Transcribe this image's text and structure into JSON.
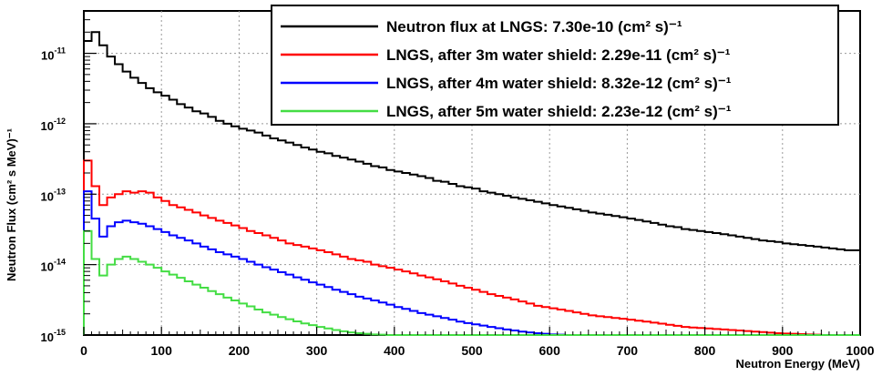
{
  "chart_data": {
    "type": "line",
    "title": "",
    "xlabel": "Neutron Energy (MeV)",
    "ylabel": "Neutron Flux (cm² s MeV)⁻¹",
    "xlim": [
      0,
      1000
    ],
    "ylim": [
      1e-15,
      4e-11
    ],
    "yscale": "log",
    "grid": true,
    "legend_position": "top-right",
    "x_ticks": [
      "0",
      "100",
      "200",
      "300",
      "400",
      "500",
      "600",
      "700",
      "800",
      "900",
      "1000"
    ],
    "y_ticks": [
      {
        "base": "10",
        "exp": "-11",
        "value": 1e-11
      },
      {
        "base": "10",
        "exp": "-12",
        "value": 1e-12
      },
      {
        "base": "10",
        "exp": "-13",
        "value": 1e-13
      },
      {
        "base": "10",
        "exp": "-14",
        "value": 1e-14
      },
      {
        "base": "10",
        "exp": "-15",
        "value": 1e-15
      }
    ],
    "bin_width": 10,
    "series": [
      {
        "name": "Neutron flux at LNGS: 7.30e-10 (cm² s)⁻¹",
        "color": "#000000",
        "values": [
          1.5e-11,
          2e-11,
          1.3e-11,
          9e-12,
          7e-12,
          5.5e-12,
          4.5e-12,
          3.8e-12,
          3.2e-12,
          2.8e-12,
          2.5e-12,
          2.2e-12,
          1.9e-12,
          1.7e-12,
          1.5e-12,
          1.4e-12,
          1.25e-12,
          1.1e-12,
          1e-12,
          9.2e-13,
          8.5e-13,
          8e-13,
          7.5e-13,
          6.8e-13,
          6.2e-13,
          5.8e-13,
          5.4e-13,
          5e-13,
          4.6e-13,
          4.3e-13,
          4e-13,
          3.8e-13,
          3.5e-13,
          3.3e-13,
          3.1e-13,
          2.9e-13,
          2.7e-13,
          2.5e-13,
          2.4e-13,
          2.2e-13,
          2.1e-13,
          2e-13,
          1.9e-13,
          1.8e-13,
          1.7e-13,
          1.55e-13,
          1.5e-13,
          1.4e-13,
          1.3e-13,
          1.25e-13,
          1.2e-13,
          1.1e-13,
          1.05e-13,
          1e-13,
          9.5e-14,
          9e-14,
          8.6e-14,
          8.2e-14,
          7.8e-14,
          7.4e-14,
          7e-14,
          6.7e-14,
          6.4e-14,
          6.1e-14,
          5.8e-14,
          5.5e-14,
          5.3e-14,
          5.1e-14,
          4.9e-14,
          4.7e-14,
          4.5e-14,
          4.3e-14,
          4.1e-14,
          3.9e-14,
          3.7e-14,
          3.5e-14,
          3.4e-14,
          3.2e-14,
          3.1e-14,
          3e-14,
          2.9e-14,
          2.8e-14,
          2.7e-14,
          2.6e-14,
          2.5e-14,
          2.4e-14,
          2.3e-14,
          2.2e-14,
          2.15e-14,
          2.1e-14,
          2e-14,
          1.95e-14,
          1.9e-14,
          1.85e-14,
          1.8e-14,
          1.75e-14,
          1.7e-14,
          1.65e-14,
          1.6e-14,
          1.6e-14
        ]
      },
      {
        "name": "LNGS, after 3m water shield: 2.29e-11 (cm² s)⁻¹",
        "color": "#ff0000",
        "values": [
          3e-13,
          1.3e-13,
          7e-14,
          9e-14,
          1e-13,
          1.1e-13,
          1.05e-13,
          1.1e-13,
          1.05e-13,
          9e-14,
          8e-14,
          7e-14,
          6.5e-14,
          6e-14,
          5.5e-14,
          5e-14,
          4.6e-14,
          4.2e-14,
          3.9e-14,
          3.6e-14,
          3.3e-14,
          3e-14,
          2.8e-14,
          2.6e-14,
          2.4e-14,
          2.2e-14,
          2e-14,
          1.9e-14,
          1.8e-14,
          1.7e-14,
          1.6e-14,
          1.5e-14,
          1.4e-14,
          1.3e-14,
          1.2e-14,
          1.15e-14,
          1.1e-14,
          1e-14,
          9.5e-15,
          9e-15,
          8.5e-15,
          8e-15,
          7.5e-15,
          7e-15,
          6.6e-15,
          6.2e-15,
          5.8e-15,
          5.4e-15,
          5e-15,
          4.7e-15,
          4.4e-15,
          4.1e-15,
          3.8e-15,
          3.6e-15,
          3.4e-15,
          3.2e-15,
          3e-15,
          2.8e-15,
          2.6e-15,
          2.5e-15,
          2.4e-15,
          2.3e-15,
          2.2e-15,
          2.1e-15,
          2e-15,
          1.9e-15,
          1.85e-15,
          1.8e-15,
          1.75e-15,
          1.7e-15,
          1.65e-15,
          1.6e-15,
          1.55e-15,
          1.5e-15,
          1.45e-15,
          1.4e-15,
          1.35e-15,
          1.3e-15,
          1.28e-15,
          1.26e-15,
          1.24e-15,
          1.22e-15,
          1.2e-15,
          1.18e-15,
          1.16e-15,
          1.14e-15,
          1.12e-15,
          1.1e-15,
          1.08e-15,
          1.06e-15,
          1.05e-15,
          1.04e-15,
          1.03e-15,
          1.02e-15,
          1.01e-15,
          1e-15,
          1e-15,
          1e-15,
          1e-15,
          1e-15
        ]
      },
      {
        "name": "LNGS, after 4m water shield: 8.32e-12 (cm² s)⁻¹",
        "color": "#0000ff",
        "values": [
          1.1e-13,
          4.5e-14,
          2.5e-14,
          3.5e-14,
          4e-14,
          4.2e-14,
          4e-14,
          3.8e-14,
          3.5e-14,
          3.2e-14,
          2.9e-14,
          2.6e-14,
          2.4e-14,
          2.2e-14,
          2e-14,
          1.8e-14,
          1.65e-14,
          1.5e-14,
          1.4e-14,
          1.3e-14,
          1.2e-14,
          1.1e-14,
          1e-14,
          9.2e-15,
          8.5e-15,
          7.8e-15,
          7.2e-15,
          6.6e-15,
          6.1e-15,
          5.6e-15,
          5.2e-15,
          4.8e-15,
          4.4e-15,
          4.1e-15,
          3.8e-15,
          3.5e-15,
          3.3e-15,
          3.1e-15,
          2.9e-15,
          2.7e-15,
          2.5e-15,
          2.35e-15,
          2.2e-15,
          2.05e-15,
          1.95e-15,
          1.85e-15,
          1.75e-15,
          1.65e-15,
          1.55e-15,
          1.48e-15,
          1.42e-15,
          1.36e-15,
          1.3e-15,
          1.25e-15,
          1.2e-15,
          1.16e-15,
          1.12e-15,
          1.09e-15,
          1.06e-15,
          1.04e-15,
          1.02e-15,
          1.01e-15,
          1e-15,
          1e-15,
          1e-15,
          1e-15,
          1e-15,
          1e-15,
          1e-15,
          1e-15,
          1e-15,
          1e-15,
          1e-15,
          1e-15,
          1e-15,
          1e-15,
          1e-15,
          1e-15,
          1e-15,
          1e-15,
          1e-15,
          1e-15,
          1e-15,
          1e-15,
          1e-15,
          1e-15,
          1e-15,
          1e-15,
          1e-15,
          1e-15,
          1e-15,
          1e-15,
          1e-15,
          1e-15,
          1e-15,
          1e-15,
          1e-15,
          1e-15,
          1e-15,
          1e-15
        ]
      },
      {
        "name": "LNGS, after 5m water shield: 2.23e-12 (cm² s)⁻¹",
        "color": "#44dd44",
        "values": [
          3e-14,
          1.2e-14,
          7e-15,
          1e-14,
          1.2e-14,
          1.3e-14,
          1.2e-14,
          1.1e-14,
          1e-14,
          9e-15,
          8e-15,
          7.2e-15,
          6.5e-15,
          5.8e-15,
          5.2e-15,
          4.7e-15,
          4.2e-15,
          3.8e-15,
          3.4e-15,
          3.1e-15,
          2.8e-15,
          2.55e-15,
          2.3e-15,
          2.1e-15,
          1.95e-15,
          1.8e-15,
          1.68e-15,
          1.56e-15,
          1.46e-15,
          1.38e-15,
          1.3e-15,
          1.24e-15,
          1.18e-15,
          1.13e-15,
          1.09e-15,
          1.06e-15,
          1.04e-15,
          1.02e-15,
          1.01e-15,
          1e-15,
          1e-15,
          1e-15,
          1e-15,
          1e-15,
          1e-15,
          1e-15,
          1e-15,
          1e-15,
          1e-15,
          1e-15,
          1e-15,
          1e-15,
          1e-15,
          1e-15,
          1e-15,
          1e-15,
          1e-15,
          1e-15,
          1e-15,
          1e-15,
          1e-15,
          1e-15,
          1e-15,
          1e-15,
          1e-15,
          1e-15,
          1e-15,
          1e-15,
          1e-15,
          1e-15,
          1e-15,
          1e-15,
          1e-15,
          1e-15,
          1e-15,
          1e-15,
          1e-15,
          1e-15,
          1e-15,
          1e-15,
          1e-15,
          1e-15,
          1e-15,
          1e-15,
          1e-15,
          1e-15,
          1e-15,
          1e-15,
          1e-15,
          1e-15,
          1e-15,
          1e-15,
          1e-15,
          1e-15,
          1e-15,
          1e-15,
          1e-15,
          1e-15,
          1e-15,
          1e-15
        ]
      }
    ]
  }
}
